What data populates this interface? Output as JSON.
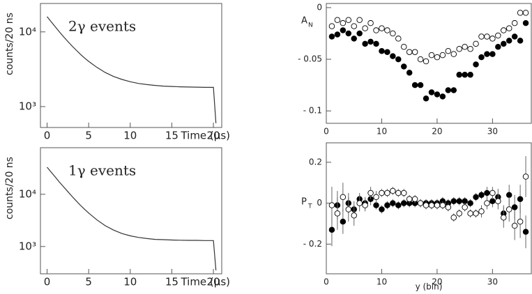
{
  "chart_data": [
    {
      "type": "line",
      "annotation": "2γ events",
      "x_label": "Time (μs)",
      "y_label": "counts/20 ns",
      "log_y": true,
      "color": "#333333",
      "x": [
        0,
        0.5,
        1,
        1.5,
        2,
        2.5,
        3,
        3.5,
        4,
        4.5,
        5,
        6,
        7,
        8,
        9,
        10,
        11,
        12,
        13,
        14,
        15,
        16,
        17,
        18,
        19,
        20,
        20.3
      ],
      "values": [
        16000,
        13600,
        11610,
        9950,
        8570,
        7430,
        6480,
        5690,
        5030,
        4480,
        4030,
        3340,
        2860,
        2530,
        2310,
        2150,
        2040,
        1970,
        1920,
        1880,
        1860,
        1840,
        1830,
        1820,
        1810,
        1810,
        600
      ],
      "xlim": [
        -0.8,
        21
      ],
      "xticks": [
        0,
        5,
        10,
        15,
        20
      ],
      "ylim": [
        525,
        24000
      ],
      "yticks": [
        {
          "value": 1000,
          "label": "10³"
        },
        {
          "value": 10000,
          "label": "10⁴"
        }
      ]
    },
    {
      "type": "line",
      "annotation": "1γ events",
      "x_label": "Time (μs)",
      "y_label": "counts/20 ns",
      "log_y": true,
      "color": "#333333",
      "x": [
        0,
        0.5,
        1,
        1.5,
        2,
        2.5,
        3,
        3.5,
        4,
        4.5,
        5,
        6,
        7,
        8,
        9,
        10,
        11,
        12,
        13,
        14,
        15,
        16,
        17,
        18,
        19,
        20,
        20.3
      ],
      "values": [
        33000,
        26400,
        21200,
        17000,
        13800,
        11200,
        9100,
        7480,
        6180,
        5170,
        4370,
        3220,
        2500,
        2060,
        1770,
        1600,
        1490,
        1420,
        1370,
        1350,
        1330,
        1320,
        1310,
        1310,
        1300,
        1300,
        350
      ],
      "xlim": [
        -0.8,
        21
      ],
      "xticks": [
        0,
        5,
        10,
        15,
        20
      ],
      "ylim": [
        300,
        78000
      ],
      "yticks": [
        {
          "value": 1000,
          "label": "10³"
        },
        {
          "value": 10000,
          "label": "10⁴"
        }
      ]
    },
    {
      "type": "scatter",
      "y_label": "A",
      "y_label_sub": "N",
      "x": [
        1,
        2,
        3,
        4,
        5,
        6,
        7,
        8,
        9,
        10,
        11,
        12,
        13,
        14,
        15,
        16,
        17,
        18,
        19,
        20,
        21,
        22,
        23,
        24,
        25,
        26,
        27,
        28,
        29,
        30,
        31,
        32,
        33,
        34,
        35,
        36
      ],
      "series": [
        {
          "color": "#000000",
          "fill": "#000000",
          "values": [
            -0.028,
            -0.026,
            -0.022,
            -0.025,
            -0.03,
            -0.025,
            -0.035,
            -0.033,
            -0.035,
            -0.042,
            -0.043,
            -0.047,
            -0.05,
            -0.057,
            -0.063,
            -0.075,
            -0.075,
            -0.088,
            -0.082,
            -0.084,
            -0.086,
            -0.08,
            -0.08,
            -0.065,
            -0.065,
            -0.065,
            -0.055,
            -0.048,
            -0.045,
            -0.045,
            -0.038,
            -0.035,
            -0.032,
            -0.028,
            -0.032,
            -0.015
          ]
        },
        {
          "color": "#000000",
          "fill": "#ffffff",
          "values": [
            -0.018,
            -0.012,
            -0.015,
            -0.012,
            -0.018,
            -0.012,
            -0.02,
            -0.015,
            -0.022,
            -0.02,
            -0.022,
            -0.025,
            -0.03,
            -0.038,
            -0.043,
            -0.043,
            -0.05,
            -0.052,
            -0.046,
            -0.048,
            -0.046,
            -0.042,
            -0.045,
            -0.04,
            -0.038,
            -0.04,
            -0.035,
            -0.028,
            -0.028,
            -0.03,
            -0.027,
            -0.022,
            -0.02,
            -0.015,
            -0.005,
            -0.005
          ]
        }
      ],
      "xlim": [
        0,
        37
      ],
      "xticks": [
        0,
        10,
        20,
        30
      ],
      "ylim": [
        -0.112,
        0.004
      ],
      "yticks": [
        0,
        {
          "value": -0.05,
          "label": "- 0.05"
        },
        {
          "value": -0.1,
          "label": "- 0.1"
        }
      ]
    },
    {
      "type": "scatter",
      "y_label": "P",
      "y_label_sub": "T",
      "x_label": "y (bin)",
      "x": [
        1,
        2,
        3,
        4,
        5,
        6,
        7,
        8,
        9,
        10,
        11,
        12,
        13,
        14,
        15,
        16,
        17,
        18,
        19,
        20,
        21,
        22,
        23,
        24,
        25,
        26,
        27,
        28,
        29,
        30,
        31,
        32,
        33,
        34,
        35,
        36
      ],
      "series": [
        {
          "color": "#000000",
          "fill": "#000000",
          "values": [
            -0.13,
            -0.01,
            -0.09,
            0.0,
            -0.03,
            0.02,
            0.0,
            0.02,
            -0.01,
            -0.03,
            -0.01,
            0.0,
            -0.01,
            0.0,
            0.0,
            0.0,
            0.0,
            0.0,
            0.0,
            0.0,
            0.01,
            0.0,
            0.01,
            0.01,
            0.01,
            0.0,
            0.03,
            0.04,
            0.05,
            0.01,
            0.03,
            -0.05,
            0.04,
            -0.02,
            0.02,
            -0.14
          ],
          "errors": [
            0.08,
            0.07,
            0.06,
            0.05,
            0.04,
            0.03,
            0.03,
            0.03,
            0.02,
            0.02,
            0.02,
            0.02,
            0.02,
            0.02,
            0.02,
            0.02,
            0.02,
            0.02,
            0.02,
            0.02,
            0.02,
            0.02,
            0.02,
            0.02,
            0.02,
            0.02,
            0.02,
            0.02,
            0.03,
            0.03,
            0.04,
            0.04,
            0.05,
            0.06,
            0.07,
            0.08
          ]
        },
        {
          "color": "#000000",
          "fill": "#ffffff",
          "values": [
            -0.01,
            -0.05,
            0.03,
            -0.03,
            -0.06,
            0.0,
            -0.01,
            0.05,
            0.03,
            0.05,
            0.05,
            0.06,
            0.05,
            0.05,
            0.02,
            0.02,
            0.0,
            -0.01,
            -0.01,
            -0.01,
            -0.01,
            -0.02,
            -0.07,
            -0.05,
            -0.02,
            -0.05,
            -0.05,
            -0.04,
            0.0,
            0.05,
            0.01,
            -0.07,
            -0.03,
            -0.11,
            -0.09,
            0.13
          ],
          "errors": [
            0.09,
            0.08,
            0.07,
            0.06,
            0.05,
            0.04,
            0.03,
            0.03,
            0.03,
            0.02,
            0.02,
            0.02,
            0.02,
            0.02,
            0.02,
            0.02,
            0.02,
            0.02,
            0.02,
            0.02,
            0.02,
            0.02,
            0.02,
            0.02,
            0.02,
            0.02,
            0.02,
            0.03,
            0.03,
            0.03,
            0.04,
            0.05,
            0.06,
            0.07,
            0.08,
            0.1
          ]
        }
      ],
      "xlim": [
        0,
        37
      ],
      "xticks": [
        0,
        10,
        20,
        30
      ],
      "ylim": [
        -0.345,
        0.295
      ],
      "yticks": [
        0.2,
        0,
        {
          "value": -0.2,
          "label": "- 0.2"
        }
      ]
    }
  ]
}
